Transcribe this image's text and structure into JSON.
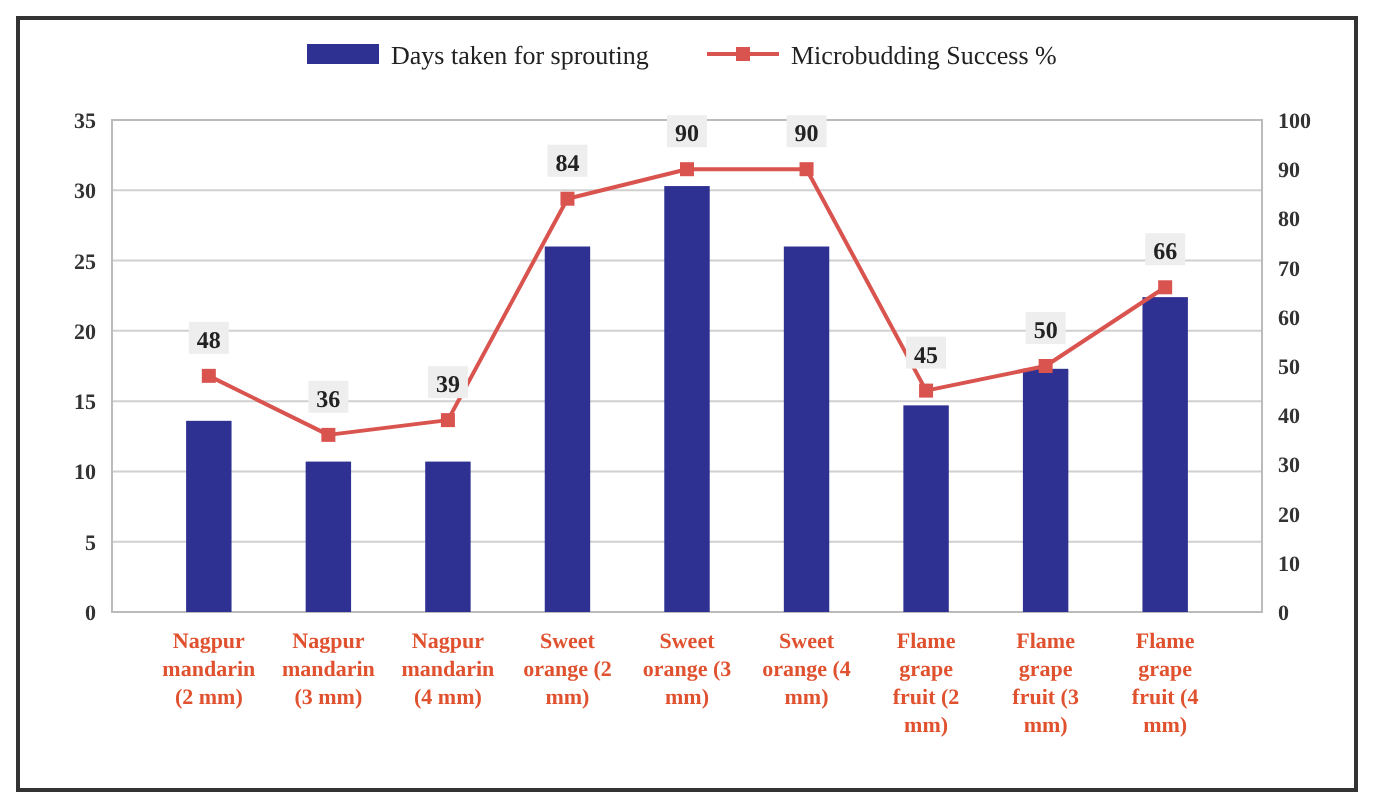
{
  "chart_data": {
    "type": "bar",
    "categories": [
      "Nagpur mandarin (2 mm)",
      "Nagpur mandarin (3 mm)",
      "Nagpur mandarin (4 mm)",
      "Sweet orange (2 mm)",
      "Sweet orange (3 mm)",
      "Sweet orange (4 mm)",
      "Flame grape fruit (2 mm)",
      "Flame grape fruit (3 mm)",
      "Flame grape fruit (4 mm)"
    ],
    "series": [
      {
        "name": "Days taken for sprouting",
        "color": "#2e3192",
        "values": [
          13.6,
          10.7,
          10.7,
          26,
          30.3,
          26,
          14.7,
          17.3,
          22.4
        ]
      },
      {
        "name": "Microbudding Success %",
        "type": "line",
        "axis": "y2",
        "color": "#d9534f",
        "marker": "square",
        "values": [
          48,
          36,
          39,
          84,
          90,
          90,
          45,
          50,
          66
        ],
        "value_labels": [
          "48",
          "36",
          "39",
          "84",
          "90",
          "90",
          "45",
          "50",
          "66"
        ]
      }
    ],
    "ylim": [
      0,
      35
    ],
    "yticks": [
      0,
      5,
      10,
      15,
      20,
      25,
      30,
      35
    ],
    "y2lim": [
      0,
      100
    ],
    "y2ticks": [
      0,
      10,
      20,
      30,
      40,
      50,
      60,
      70,
      80,
      90,
      100
    ],
    "grid": "y",
    "legend": "top"
  }
}
